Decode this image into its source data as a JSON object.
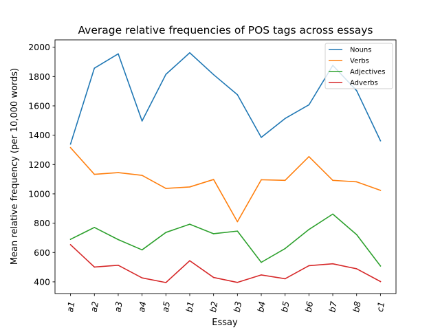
{
  "chart_data": {
    "type": "line",
    "title": "Average relative frequencies of POS tags across essays",
    "xlabel": "Essay",
    "ylabel": "Mean relative frequency (per 10,000 words)",
    "categories": [
      "a1",
      "a2",
      "a3",
      "a4",
      "a5",
      "b1",
      "b2",
      "b3",
      "b4",
      "b5",
      "b6",
      "b7",
      "b8",
      "c1"
    ],
    "ylim": [
      320,
      2050
    ],
    "yticks": [
      400,
      600,
      800,
      1000,
      1200,
      1400,
      1600,
      1800,
      2000
    ],
    "grid": false,
    "legend_position": "top-right",
    "series": [
      {
        "name": "Nouns",
        "color": "#1f77b4",
        "values": [
          1340,
          1857,
          1955,
          1497,
          1815,
          1962,
          1813,
          1676,
          1385,
          1514,
          1607,
          1876,
          1704,
          1362
        ]
      },
      {
        "name": "Verbs",
        "color": "#ff7f0e",
        "values": [
          1315,
          1133,
          1145,
          1126,
          1037,
          1047,
          1098,
          810,
          1096,
          1092,
          1254,
          1092,
          1082,
          1024
        ]
      },
      {
        "name": "Adjectives",
        "color": "#2ca02c",
        "values": [
          690,
          771,
          688,
          618,
          737,
          793,
          728,
          746,
          533,
          627,
          757,
          862,
          722,
          508
        ]
      },
      {
        "name": "Adverbs",
        "color": "#d62728",
        "values": [
          653,
          501,
          513,
          427,
          395,
          544,
          430,
          396,
          447,
          421,
          510,
          523,
          489,
          402
        ]
      }
    ]
  }
}
